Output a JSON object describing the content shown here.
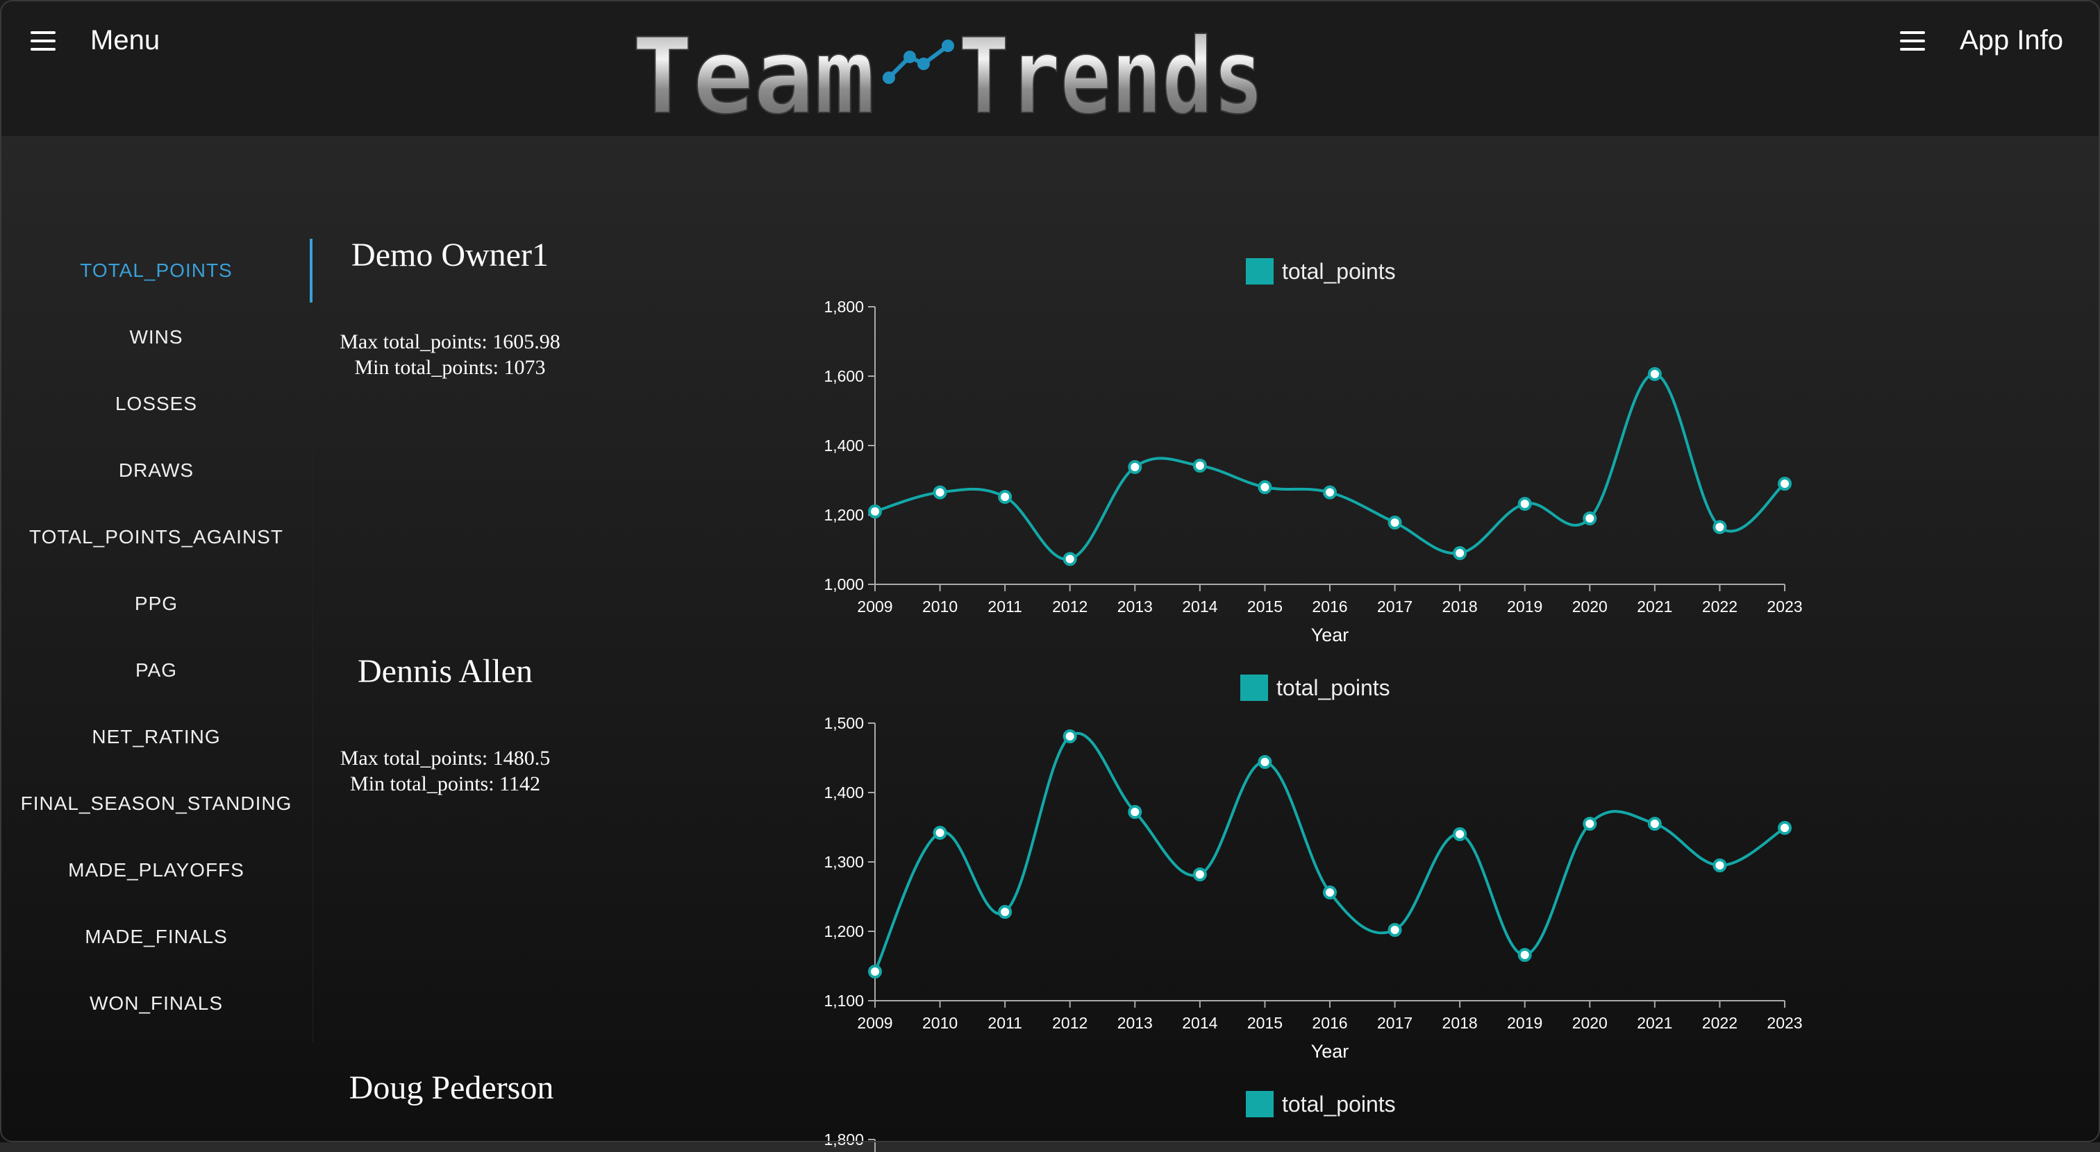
{
  "header": {
    "menu_label": "Menu",
    "logo_text": "Team Trends",
    "info_label": "App Info"
  },
  "sidebar": {
    "items": [
      {
        "label": "TOTAL_POINTS",
        "active": true
      },
      {
        "label": "WINS"
      },
      {
        "label": "LOSSES"
      },
      {
        "label": "DRAWS"
      },
      {
        "label": "TOTAL_POINTS_AGAINST"
      },
      {
        "label": "PPG"
      },
      {
        "label": "PAG"
      },
      {
        "label": "NET_RATING"
      },
      {
        "label": "FINAL_SEASON_STANDING"
      },
      {
        "label": "MADE_PLAYOFFS"
      },
      {
        "label": "MADE_FINALS"
      },
      {
        "label": "WON_FINALS"
      }
    ]
  },
  "owners": [
    {
      "name": "Demo Owner1",
      "max": "Max total_points: 1605.98",
      "min": "Min total_points: 1073"
    },
    {
      "name": "Dennis Allen",
      "max": "Max total_points: 1480.5",
      "min": "Min total_points: 1142"
    },
    {
      "name": "Doug Pederson"
    }
  ],
  "colors": {
    "series": "#13a8a8",
    "accent": "#3aa0d8"
  },
  "chart_data": [
    {
      "type": "line",
      "title": "",
      "xlabel": "Year",
      "ylabel": "",
      "legend": "top-center",
      "grid": false,
      "x": [
        2009,
        2010,
        2011,
        2012,
        2013,
        2014,
        2015,
        2016,
        2017,
        2018,
        2019,
        2020,
        2021,
        2022,
        2023
      ],
      "series": [
        {
          "name": "total_points",
          "values": [
            1210,
            1265,
            1252,
            1073,
            1338,
            1342,
            1280,
            1265,
            1178,
            1090,
            1232,
            1190,
            1606,
            1165,
            1290
          ]
        }
      ],
      "ylim": [
        1000,
        1800
      ],
      "yticks": [
        1000,
        1200,
        1400,
        1600,
        1800
      ],
      "ytick_labels": [
        "1,000",
        "1,200",
        "1,400",
        "1,600",
        "1,800"
      ]
    },
    {
      "type": "line",
      "title": "",
      "xlabel": "Year",
      "ylabel": "",
      "legend": "top-center",
      "grid": false,
      "x": [
        2009,
        2010,
        2011,
        2012,
        2013,
        2014,
        2015,
        2016,
        2017,
        2018,
        2019,
        2020,
        2021,
        2022,
        2023
      ],
      "series": [
        {
          "name": "total_points",
          "values": [
            1142,
            1342,
            1228,
            1481,
            1372,
            1282,
            1444,
            1256,
            1202,
            1340,
            1166,
            1355,
            1355,
            1295,
            1349
          ]
        }
      ],
      "ylim": [
        1100,
        1500
      ],
      "yticks": [
        1100,
        1200,
        1300,
        1400,
        1500
      ],
      "ytick_labels": [
        "1,100",
        "1,200",
        "1,300",
        "1,400",
        "1,500"
      ]
    },
    {
      "type": "line",
      "title": "",
      "xlabel": "",
      "ylabel": "",
      "legend": "top-center",
      "grid": false,
      "x": [],
      "series": [
        {
          "name": "total_points",
          "values": []
        }
      ],
      "ylim": [
        1000,
        1800
      ],
      "yticks": [
        1800
      ],
      "ytick_labels": [
        "1,800"
      ]
    }
  ]
}
